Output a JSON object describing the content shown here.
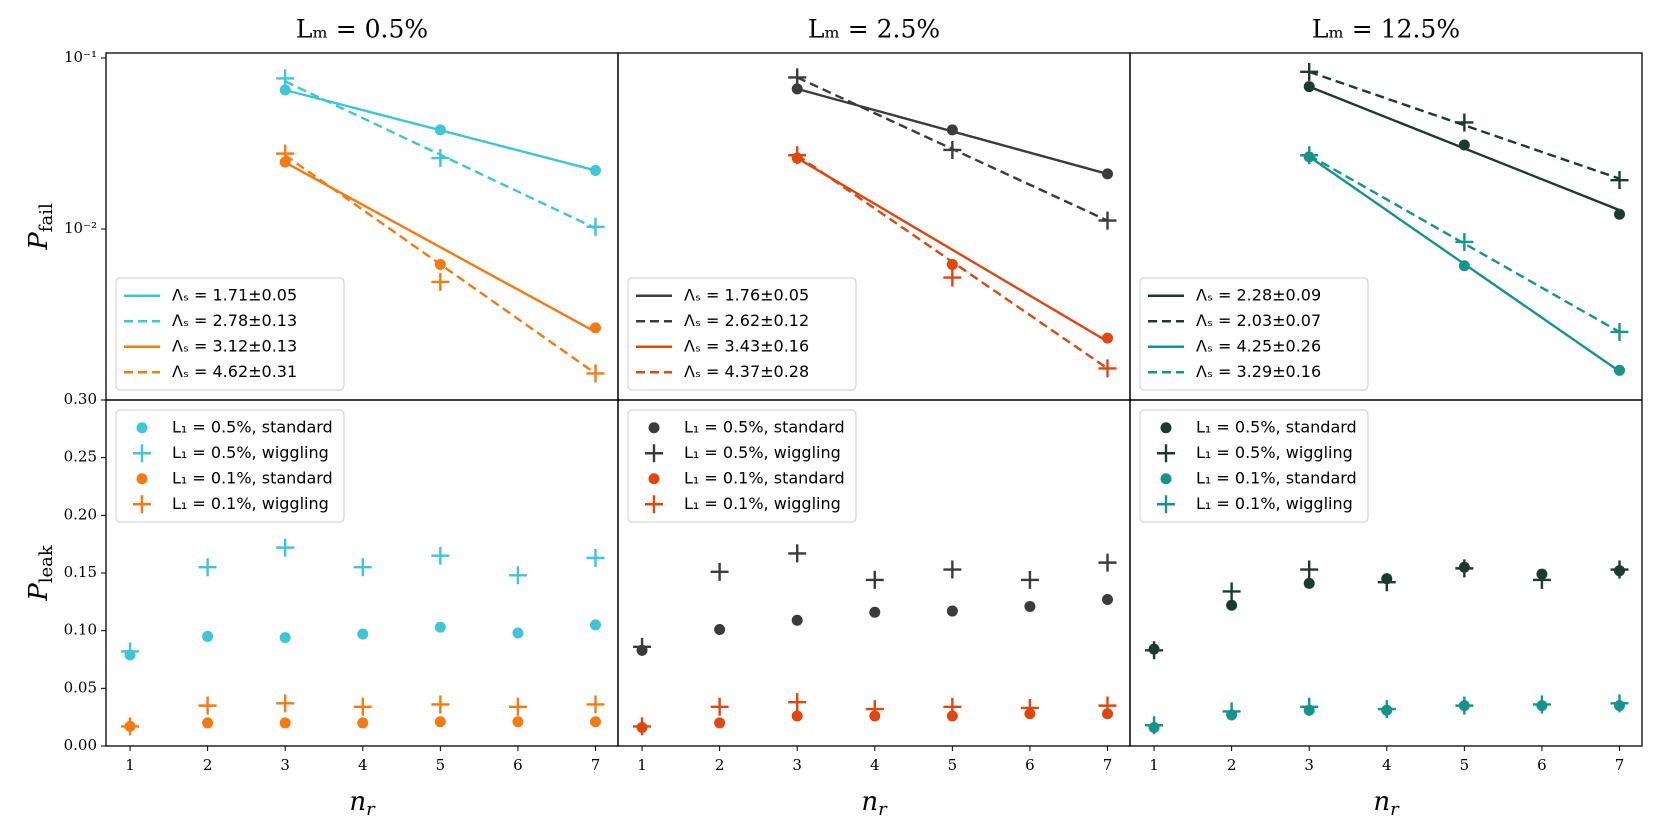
{
  "chart_data": [
    {
      "type": "scatter",
      "title": "Lₘ = 0.5%",
      "ylabel": [
        "P",
        "fail"
      ],
      "ylog": true,
      "legend": "lower left",
      "xlim": [
        0.69,
        7.29
      ],
      "ylim": [
        0.001,
        0.107
      ],
      "yticks": [
        {
          "value": 0.01,
          "label": "10⁻²"
        },
        {
          "value": 0.1,
          "label": "10⁻¹"
        }
      ],
      "series": [
        {
          "color": "#3ec6d6",
          "marker": "circle",
          "x": [
            3,
            5,
            7
          ],
          "values": [
            0.065,
            0.038,
            0.022
          ]
        },
        {
          "color": "#3ec6d6",
          "marker": "plus",
          "x": [
            3,
            5,
            7
          ],
          "values": [
            0.076,
            0.026,
            0.0103
          ]
        },
        {
          "color": "#f57a12",
          "marker": "circle",
          "x": [
            3,
            5,
            7
          ],
          "values": [
            0.0246,
            0.0062,
            0.00264
          ]
        },
        {
          "color": "#f57a12",
          "marker": "plus",
          "x": [
            3,
            5,
            7
          ],
          "values": [
            0.0276,
            0.0049,
            0.00143
          ]
        }
      ],
      "fits": [
        {
          "name": "Λₛ = 1.71±0.05",
          "color": "#3ec6d6",
          "dash": false,
          "x": [
            3,
            7
          ],
          "values": [
            0.065,
            0.022
          ]
        },
        {
          "name": "Λₛ = 2.78±0.13",
          "color": "#3ec6d6",
          "dash": true,
          "x": [
            3,
            7
          ],
          "values": [
            0.073,
            0.0101
          ]
        },
        {
          "name": "Λₛ = 3.12±0.13",
          "color": "#f57a12",
          "dash": false,
          "x": [
            3,
            7
          ],
          "values": [
            0.0245,
            0.0025
          ]
        },
        {
          "name": "Λₛ = 4.62±0.31",
          "color": "#f57a12",
          "dash": true,
          "x": [
            3,
            7
          ],
          "values": [
            0.027,
            0.00143
          ]
        }
      ]
    },
    {
      "type": "scatter",
      "title": "Lₘ = 2.5%",
      "ylog": true,
      "legend": "lower left",
      "xlim": [
        0.69,
        7.29
      ],
      "ylim": [
        0.001,
        0.107
      ],
      "series": [
        {
          "color": "#3b3b3b",
          "marker": "circle",
          "x": [
            3,
            5,
            7
          ],
          "values": [
            0.066,
            0.038,
            0.021
          ]
        },
        {
          "color": "#3b3b3b",
          "marker": "plus",
          "x": [
            3,
            5,
            7
          ],
          "values": [
            0.077,
            0.029,
            0.0112
          ]
        },
        {
          "color": "#e0460f",
          "marker": "circle",
          "x": [
            3,
            5,
            7
          ],
          "values": [
            0.026,
            0.0062,
            0.0023
          ]
        },
        {
          "color": "#e0460f",
          "marker": "plus",
          "x": [
            3,
            5,
            7
          ],
          "values": [
            0.027,
            0.0052,
            0.00153
          ]
        }
      ],
      "fits": [
        {
          "name": "Λₛ = 1.76±0.05",
          "color": "#3b3b3b",
          "dash": false,
          "x": [
            3,
            7
          ],
          "values": [
            0.066,
            0.021
          ]
        },
        {
          "name": "Λₛ = 2.62±0.12",
          "color": "#3b3b3b",
          "dash": true,
          "x": [
            3,
            7
          ],
          "values": [
            0.077,
            0.0112
          ]
        },
        {
          "name": "Λₛ = 3.43±0.16",
          "color": "#e0460f",
          "dash": false,
          "x": [
            3,
            7
          ],
          "values": [
            0.026,
            0.0022
          ]
        },
        {
          "name": "Λₛ = 4.37±0.28",
          "color": "#e0460f",
          "dash": true,
          "x": [
            3,
            7
          ],
          "values": [
            0.027,
            0.00153
          ]
        }
      ]
    },
    {
      "type": "scatter",
      "title": "Lₘ = 12.5%",
      "ylog": true,
      "legend": "lower left",
      "xlim": [
        0.69,
        7.29
      ],
      "ylim": [
        0.001,
        0.107
      ],
      "series": [
        {
          "color": "#1d3a2f",
          "marker": "circle",
          "x": [
            3,
            5,
            7
          ],
          "values": [
            0.068,
            0.031,
            0.0122
          ]
        },
        {
          "color": "#1d3a2f",
          "marker": "plus",
          "x": [
            3,
            5,
            7
          ],
          "values": [
            0.083,
            0.042,
            0.0193
          ]
        },
        {
          "color": "#16948c",
          "marker": "circle",
          "x": [
            3,
            5,
            7
          ],
          "values": [
            0.0264,
            0.0061,
            0.00149
          ]
        },
        {
          "color": "#16948c",
          "marker": "plus",
          "x": [
            3,
            5,
            7
          ],
          "values": [
            0.027,
            0.0084,
            0.0025
          ]
        }
      ],
      "fits": [
        {
          "name": "Λₛ = 2.28±0.09",
          "color": "#1d3a2f",
          "dash": false,
          "x": [
            3,
            7
          ],
          "values": [
            0.068,
            0.0129
          ]
        },
        {
          "name": "Λₛ = 2.03±0.07",
          "color": "#1d3a2f",
          "dash": true,
          "x": [
            3,
            7
          ],
          "values": [
            0.083,
            0.0197
          ]
        },
        {
          "name": "Λₛ = 4.25±0.26",
          "color": "#16948c",
          "dash": false,
          "x": [
            3,
            7
          ],
          "values": [
            0.0265,
            0.00147
          ]
        },
        {
          "name": "Λₛ = 3.29±0.16",
          "color": "#16948c",
          "dash": true,
          "x": [
            3,
            7
          ],
          "values": [
            0.027,
            0.0025
          ]
        }
      ]
    },
    {
      "type": "scatter",
      "ylabel": [
        "P",
        "leak"
      ],
      "xlabel": [
        "n",
        "r"
      ],
      "legend": "upper left",
      "xlim": [
        0.69,
        7.29
      ],
      "ylim": [
        0,
        0.3
      ],
      "xticks": [
        1,
        2,
        3,
        4,
        5,
        6,
        7
      ],
      "yticks": [
        {
          "value": 0,
          "label": "0.00"
        },
        {
          "value": 0.05,
          "label": "0.05"
        },
        {
          "value": 0.1,
          "label": "0.10"
        },
        {
          "value": 0.15,
          "label": "0.15"
        },
        {
          "value": 0.2,
          "label": "0.20"
        },
        {
          "value": 0.25,
          "label": "0.25"
        },
        {
          "value": 0.3,
          "label": "0.30"
        }
      ],
      "series": [
        {
          "name": "L₁ = 0.5%, standard",
          "color": "#3ec6d6",
          "marker": "circle",
          "x": [
            1,
            2,
            3,
            4,
            5,
            6,
            7
          ],
          "values": [
            0.079,
            0.095,
            0.094,
            0.097,
            0.103,
            0.098,
            0.105
          ]
        },
        {
          "name": "L₁ = 0.5%, wiggling",
          "color": "#3ec6d6",
          "marker": "plus",
          "x": [
            1,
            2,
            3,
            4,
            5,
            6,
            7
          ],
          "values": [
            0.082,
            0.155,
            0.172,
            0.155,
            0.165,
            0.148,
            0.163
          ]
        },
        {
          "name": "L₁ = 0.1%, standard",
          "color": "#f57a12",
          "marker": "circle",
          "x": [
            1,
            2,
            3,
            4,
            5,
            6,
            7
          ],
          "values": [
            0.017,
            0.02,
            0.02,
            0.02,
            0.021,
            0.021,
            0.021
          ]
        },
        {
          "name": "L₁ = 0.1%, wiggling",
          "color": "#f57a12",
          "marker": "plus",
          "x": [
            1,
            2,
            3,
            4,
            5,
            6,
            7
          ],
          "values": [
            0.017,
            0.035,
            0.037,
            0.034,
            0.036,
            0.034,
            0.036
          ]
        }
      ]
    },
    {
      "type": "scatter",
      "xlabel": [
        "n",
        "r"
      ],
      "legend": "upper left",
      "xlim": [
        0.69,
        7.29
      ],
      "ylim": [
        0,
        0.3
      ],
      "xticks": [
        1,
        2,
        3,
        4,
        5,
        6,
        7
      ],
      "series": [
        {
          "name": "L₁ = 0.5%, standard",
          "color": "#3b3b3b",
          "marker": "circle",
          "x": [
            1,
            2,
            3,
            4,
            5,
            6,
            7
          ],
          "values": [
            0.083,
            0.101,
            0.109,
            0.116,
            0.117,
            0.121,
            0.127
          ]
        },
        {
          "name": "L₁ = 0.5%, wiggling",
          "color": "#3b3b3b",
          "marker": "plus",
          "x": [
            1,
            2,
            3,
            4,
            5,
            6,
            7
          ],
          "values": [
            0.086,
            0.151,
            0.167,
            0.144,
            0.153,
            0.144,
            0.159
          ]
        },
        {
          "name": "L₁ = 0.1%, standard",
          "color": "#e0460f",
          "marker": "circle",
          "x": [
            1,
            2,
            3,
            4,
            5,
            6,
            7
          ],
          "values": [
            0.016,
            0.02,
            0.026,
            0.026,
            0.026,
            0.028,
            0.028
          ]
        },
        {
          "name": "L₁ = 0.1%, wiggling",
          "color": "#e0460f",
          "marker": "plus",
          "x": [
            1,
            2,
            3,
            4,
            5,
            6,
            7
          ],
          "values": [
            0.017,
            0.034,
            0.038,
            0.032,
            0.034,
            0.033,
            0.035
          ]
        }
      ]
    },
    {
      "type": "scatter",
      "xlabel": [
        "n",
        "r"
      ],
      "legend": "upper left",
      "xlim": [
        0.69,
        7.29
      ],
      "ylim": [
        0,
        0.3
      ],
      "xticks": [
        1,
        2,
        3,
        4,
        5,
        6,
        7
      ],
      "series": [
        {
          "name": "L₁ = 0.5%, standard",
          "color": "#1d3a2f",
          "marker": "circle",
          "x": [
            1,
            2,
            3,
            4,
            5,
            6,
            7
          ],
          "values": [
            0.084,
            0.122,
            0.141,
            0.145,
            0.155,
            0.149,
            0.152
          ]
        },
        {
          "name": "L₁ = 0.5%, wiggling",
          "color": "#1d3a2f",
          "marker": "plus",
          "x": [
            1,
            2,
            3,
            4,
            5,
            6,
            7
          ],
          "values": [
            0.083,
            0.134,
            0.153,
            0.142,
            0.154,
            0.144,
            0.153
          ]
        },
        {
          "name": "L₁ = 0.1%, standard",
          "color": "#16948c",
          "marker": "circle",
          "x": [
            1,
            2,
            3,
            4,
            5,
            6,
            7
          ],
          "values": [
            0.016,
            0.027,
            0.031,
            0.031,
            0.035,
            0.035,
            0.035
          ]
        },
        {
          "name": "L₁ = 0.1%, wiggling",
          "color": "#16948c",
          "marker": "plus",
          "x": [
            1,
            2,
            3,
            4,
            5,
            6,
            7
          ],
          "values": [
            0.018,
            0.03,
            0.034,
            0.032,
            0.035,
            0.036,
            0.037
          ]
        }
      ]
    }
  ]
}
